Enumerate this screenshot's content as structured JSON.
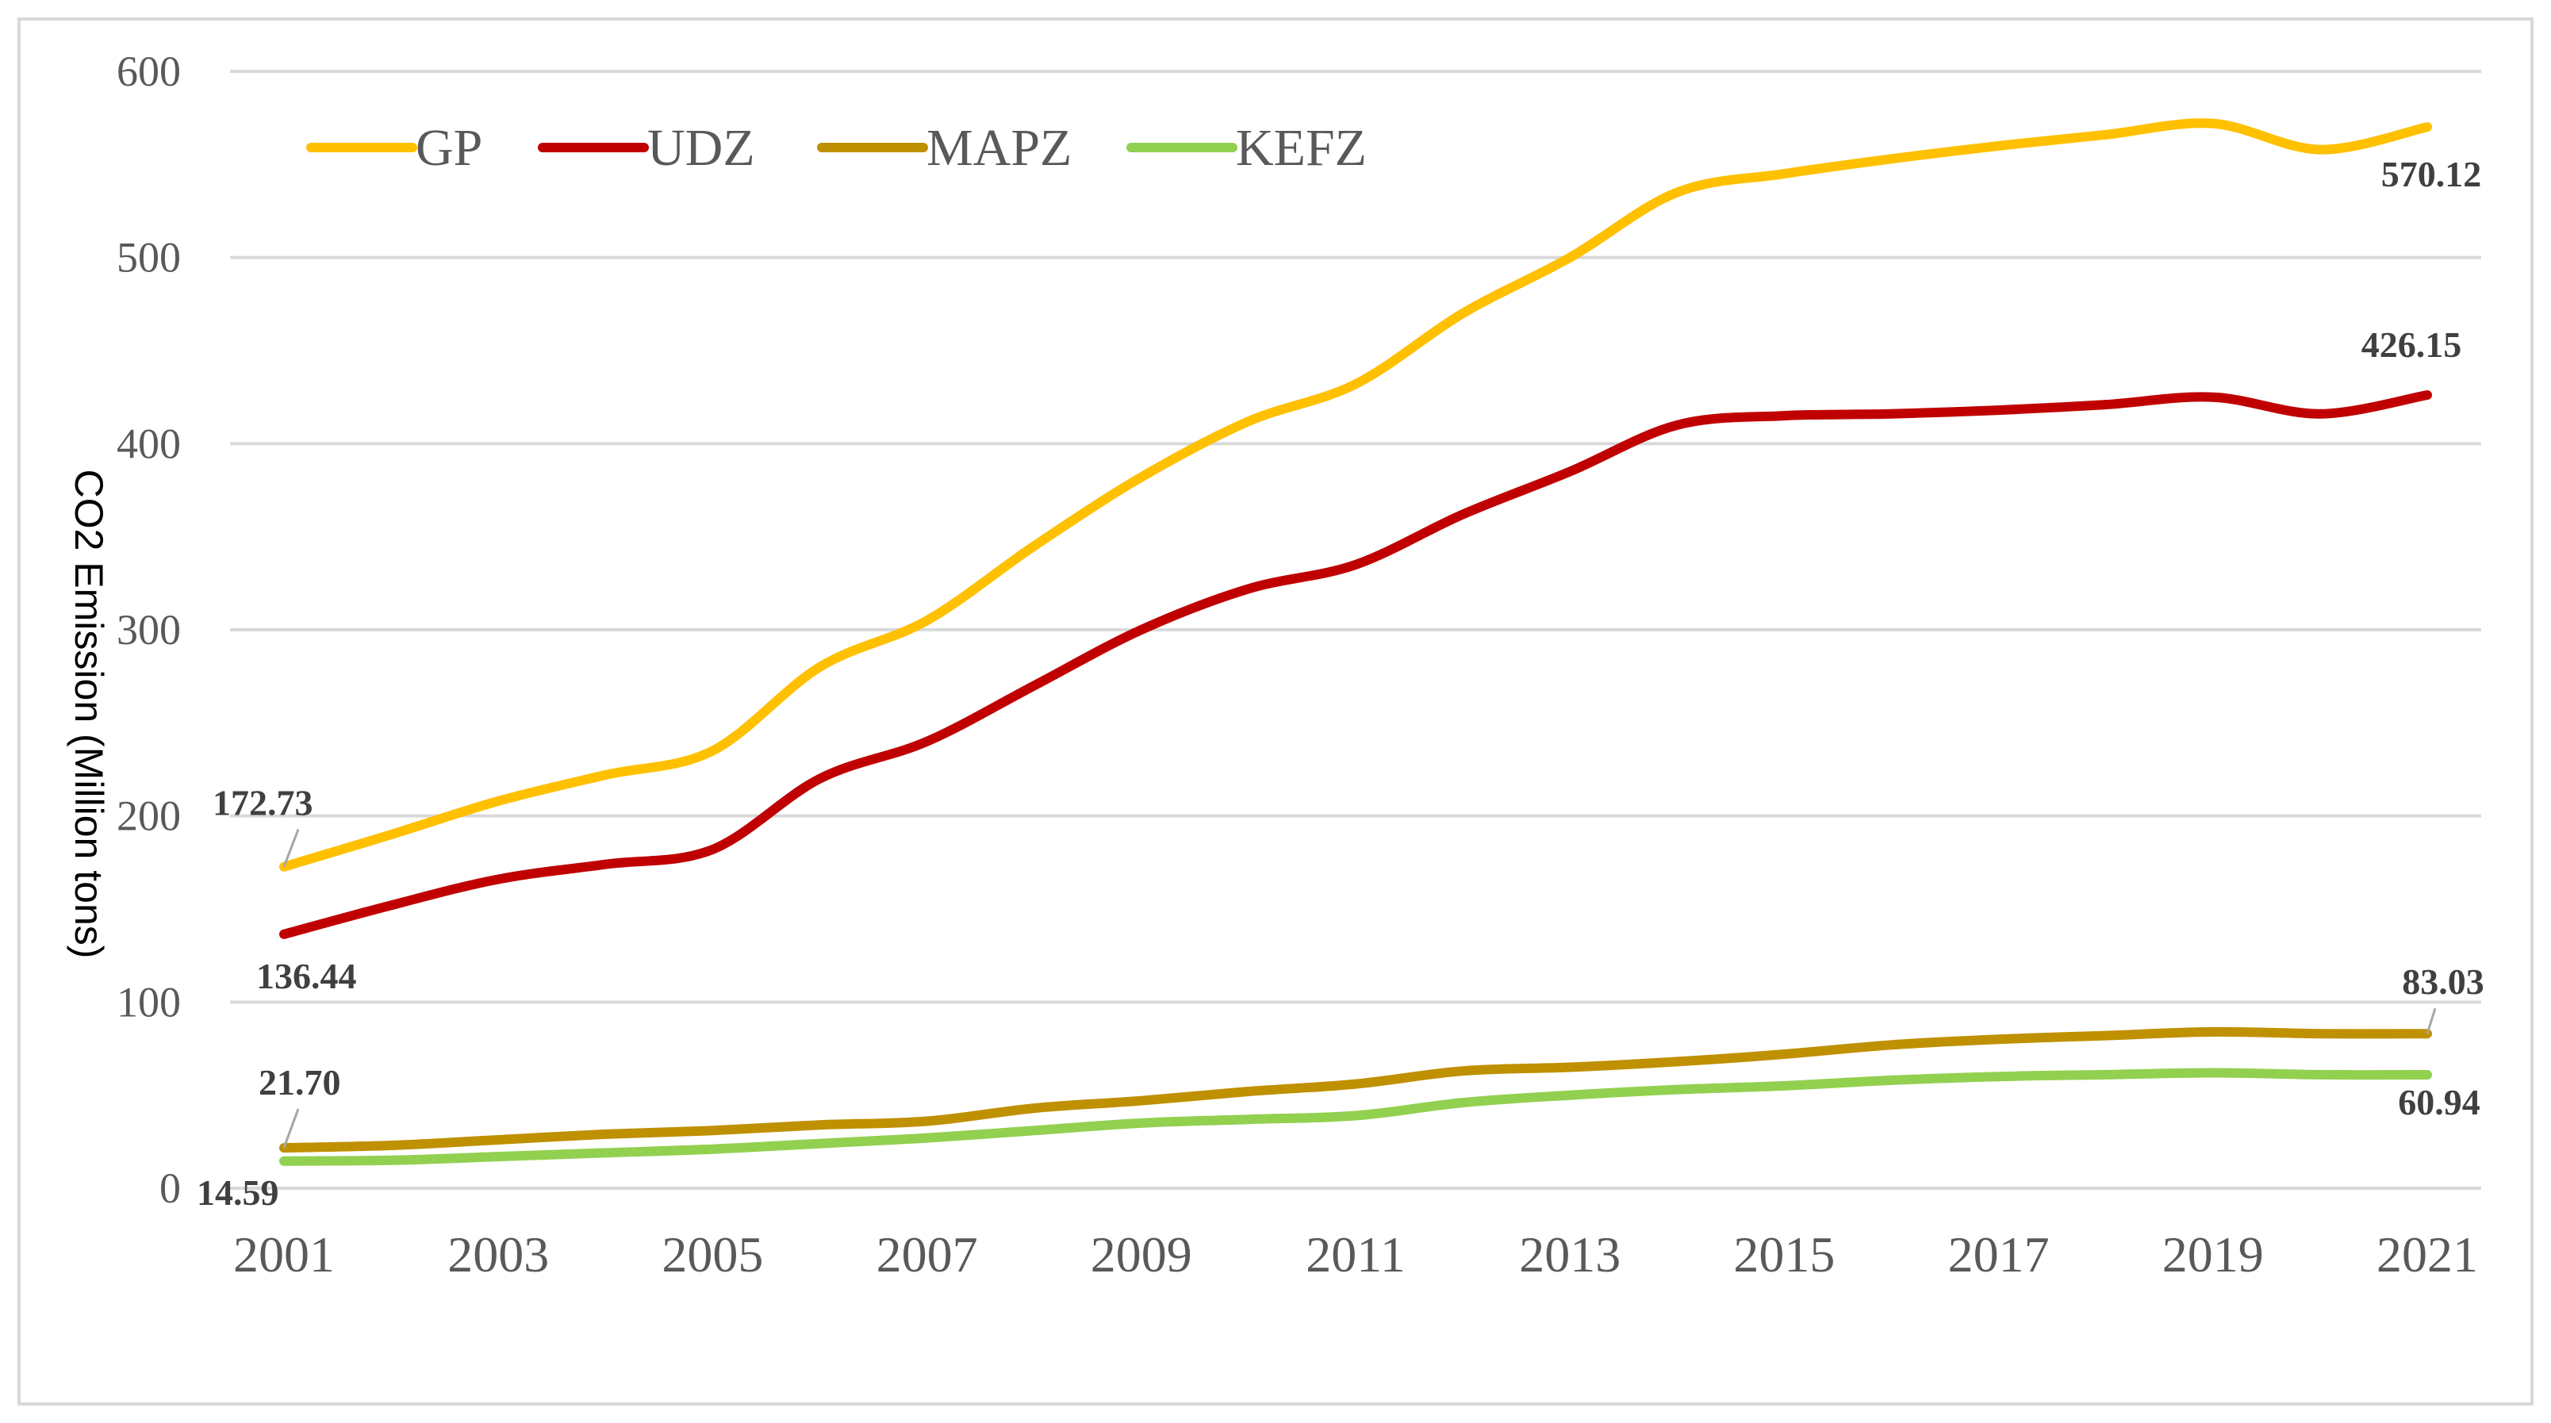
{
  "chart_data": {
    "type": "line",
    "title": "",
    "xlabel": "",
    "ylabel": "CO2 Emission (Million tons)",
    "ylim": [
      0,
      600
    ],
    "yticks": [
      0,
      100,
      200,
      300,
      400,
      500,
      600
    ],
    "x": [
      2001,
      2002,
      2003,
      2004,
      2005,
      2006,
      2007,
      2008,
      2009,
      2010,
      2011,
      2012,
      2013,
      2014,
      2015,
      2016,
      2017,
      2018,
      2019,
      2020,
      2021
    ],
    "xtick_labels": [
      "2001",
      "2003",
      "2005",
      "2007",
      "2009",
      "2011",
      "2013",
      "2015",
      "2017",
      "2019",
      "2021"
    ],
    "grid": true,
    "legend_position": "top-left",
    "series": [
      {
        "name": "GP",
        "color": "#FFC000",
        "values": [
          172.73,
          190,
          208,
          222,
          235,
          280,
          305,
          345,
          382,
          412,
          432,
          470,
          500,
          535,
          545,
          553,
          560,
          566,
          572,
          558,
          570.12
        ]
      },
      {
        "name": "UDZ",
        "color": "#C00000",
        "values": [
          136.44,
          152,
          166,
          174,
          182,
          220,
          240,
          270,
          300,
          322,
          335,
          362,
          385,
          410,
          415,
          416,
          418,
          421,
          425,
          416,
          426.15
        ]
      },
      {
        "name": "MAPZ",
        "color": "#BF9000",
        "values": [
          21.7,
          23,
          26,
          29,
          31,
          34,
          36,
          43,
          47,
          52,
          56,
          63,
          65,
          68,
          72,
          77,
          80,
          82,
          84,
          83,
          83.03
        ]
      },
      {
        "name": "KEFZ",
        "color": "#92D050",
        "values": [
          14.59,
          15,
          17,
          19,
          21,
          24,
          27,
          31,
          35,
          37,
          39,
          46,
          50,
          53,
          55,
          58,
          60,
          61,
          62,
          61,
          60.94
        ]
      }
    ],
    "annotations": [
      {
        "series": 0,
        "index": 0,
        "text": "172.73",
        "placement": "above"
      },
      {
        "series": 0,
        "index": 20,
        "text": "570.12",
        "placement": "below"
      },
      {
        "series": 1,
        "index": 0,
        "text": "136.44",
        "placement": "below"
      },
      {
        "series": 1,
        "index": 20,
        "text": "426.15",
        "placement": "above"
      },
      {
        "series": 2,
        "index": 0,
        "text": "21.70",
        "placement": "above"
      },
      {
        "series": 2,
        "index": 20,
        "text": "83.03",
        "placement": "above"
      },
      {
        "series": 3,
        "index": 0,
        "text": "14.59",
        "placement": "below"
      },
      {
        "series": 3,
        "index": 20,
        "text": "60.94",
        "placement": "below"
      }
    ]
  }
}
